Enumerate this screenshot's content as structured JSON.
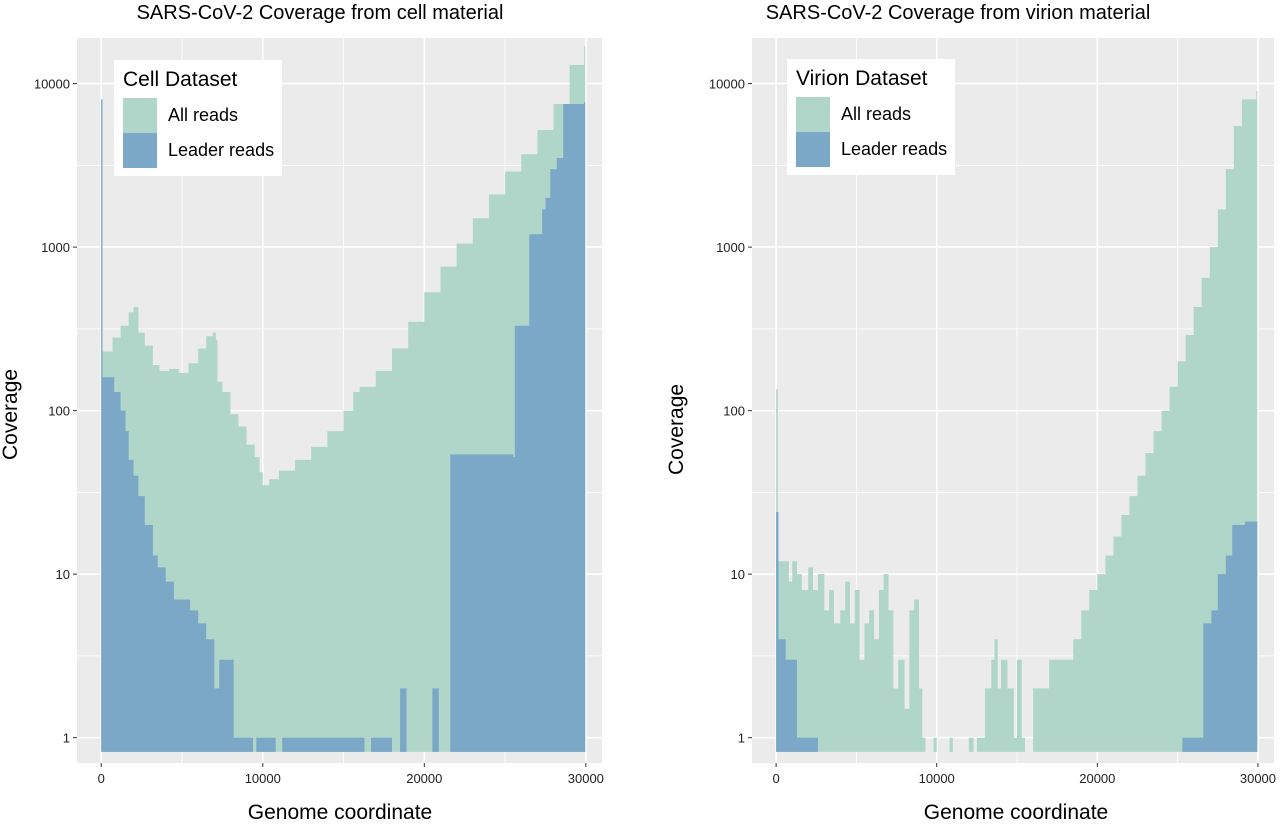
{
  "colors": {
    "panel_bg": "#ebebeb",
    "grid": "#ffffff",
    "all_reads": "#b0d6ca",
    "leader_reads": "#7ba8c7"
  },
  "chart_data": [
    {
      "type": "area",
      "title": "SARS-CoV-2 Coverage from cell material",
      "xlabel": "Genome coordinate",
      "ylabel": "Coverage",
      "y_scale": "log10",
      "xlim": [
        -1500,
        31000
      ],
      "ylim": [
        0.7,
        19000
      ],
      "x_ticks": [
        0,
        10000,
        20000,
        30000
      ],
      "y_ticks": [
        1,
        10,
        100,
        1000,
        10000
      ],
      "x_tick_labels": [
        "0",
        "10000",
        "20000",
        "30000"
      ],
      "y_tick_labels": [
        "1",
        "10",
        "100",
        "1000",
        "10000"
      ],
      "grid": true,
      "legend": {
        "title": "Cell Dataset",
        "position": "top-left",
        "entries": [
          "All reads",
          "Leader reads"
        ]
      },
      "series": [
        {
          "name": "All reads",
          "color_key": "all_reads",
          "points": [
            [
              0,
              8000
            ],
            [
              60,
              8000
            ],
            [
              80,
              230
            ],
            [
              300,
              230
            ],
            [
              700,
              280
            ],
            [
              1200,
              330
            ],
            [
              1700,
              400
            ],
            [
              2000,
              430
            ],
            [
              2300,
              300
            ],
            [
              2700,
              250
            ],
            [
              3200,
              190
            ],
            [
              3600,
              175
            ],
            [
              4200,
              180
            ],
            [
              4800,
              170
            ],
            [
              5400,
              195
            ],
            [
              6000,
              240
            ],
            [
              6500,
              285
            ],
            [
              6900,
              300
            ],
            [
              7100,
              270
            ],
            [
              7200,
              150
            ],
            [
              7500,
              130
            ],
            [
              8000,
              95
            ],
            [
              8500,
              80
            ],
            [
              9000,
              62
            ],
            [
              9500,
              52
            ],
            [
              9800,
              42
            ],
            [
              10000,
              35
            ],
            [
              10400,
              38
            ],
            [
              11000,
              43
            ],
            [
              12000,
              50
            ],
            [
              13000,
              60
            ],
            [
              14000,
              75
            ],
            [
              15000,
              100
            ],
            [
              15600,
              130
            ],
            [
              16000,
              140
            ],
            [
              17000,
              175
            ],
            [
              18000,
              240
            ],
            [
              19000,
              350
            ],
            [
              20000,
              530
            ],
            [
              21000,
              760
            ],
            [
              22000,
              1050
            ],
            [
              23000,
              1500
            ],
            [
              24000,
              2100
            ],
            [
              25000,
              2900
            ],
            [
              26000,
              3700
            ],
            [
              27000,
              5200
            ],
            [
              28000,
              7500
            ],
            [
              29000,
              13000
            ],
            [
              29900,
              17000
            ]
          ]
        },
        {
          "name": "Leader reads",
          "color_key": "leader_reads",
          "points": [
            [
              0,
              8000
            ],
            [
              60,
              8000
            ],
            [
              80,
              160
            ],
            [
              800,
              130
            ],
            [
              1200,
              100
            ],
            [
              1500,
              75
            ],
            [
              1700,
              50
            ],
            [
              2000,
              40
            ],
            [
              2300,
              30
            ],
            [
              2700,
              20
            ],
            [
              3200,
              13
            ],
            [
              3500,
              11
            ],
            [
              4000,
              9
            ],
            [
              4500,
              7
            ],
            [
              5000,
              7
            ],
            [
              5500,
              6
            ],
            [
              6000,
              5
            ],
            [
              6500,
              4
            ],
            [
              7000,
              2
            ],
            [
              7300,
              3
            ],
            [
              8200,
              1
            ],
            [
              9000,
              1
            ],
            [
              9400,
              0.8
            ],
            [
              9600,
              1
            ],
            [
              10800,
              0.8
            ],
            [
              11200,
              1
            ],
            [
              16300,
              0.8
            ],
            [
              16700,
              1
            ],
            [
              18000,
              0.8
            ],
            [
              18500,
              2
            ],
            [
              18900,
              0.8
            ],
            [
              20500,
              2
            ],
            [
              20900,
              0.8
            ],
            [
              21600,
              54
            ],
            [
              25500,
              52
            ],
            [
              25600,
              330
            ],
            [
              26200,
              330
            ],
            [
              26500,
              1200
            ],
            [
              27300,
              1700
            ],
            [
              27500,
              2000
            ],
            [
              27800,
              3000
            ],
            [
              28200,
              3500
            ],
            [
              28600,
              7500
            ],
            [
              29900,
              7700
            ]
          ]
        }
      ]
    },
    {
      "type": "area",
      "title": "SARS-CoV-2 Coverage from virion material",
      "xlabel": "Genome coordinate",
      "ylabel": "Coverage",
      "y_scale": "log10",
      "xlim": [
        -1500,
        31000
      ],
      "ylim": [
        0.7,
        19000
      ],
      "x_ticks": [
        0,
        10000,
        20000,
        30000
      ],
      "y_ticks": [
        1,
        10,
        100,
        1000,
        10000
      ],
      "x_tick_labels": [
        "0",
        "10000",
        "20000",
        "30000"
      ],
      "y_tick_labels": [
        "1",
        "10",
        "100",
        "1000",
        "10000"
      ],
      "grid": true,
      "legend": {
        "title": "Virion Dataset",
        "position": "top-left",
        "entries": [
          "All reads",
          "Leader reads"
        ]
      },
      "series": [
        {
          "name": "All reads",
          "color_key": "all_reads",
          "points": [
            [
              0,
              135
            ],
            [
              100,
              12
            ],
            [
              600,
              12
            ],
            [
              800,
              9
            ],
            [
              1000,
              12
            ],
            [
              1300,
              10
            ],
            [
              1600,
              8
            ],
            [
              2000,
              11
            ],
            [
              2300,
              8
            ],
            [
              2600,
              10
            ],
            [
              3000,
              6
            ],
            [
              3300,
              8
            ],
            [
              3600,
              5
            ],
            [
              4000,
              6
            ],
            [
              4300,
              9
            ],
            [
              4600,
              5
            ],
            [
              4900,
              8
            ],
            [
              5200,
              3
            ],
            [
              5500,
              5
            ],
            [
              5800,
              6
            ],
            [
              6100,
              4
            ],
            [
              6400,
              8
            ],
            [
              6700,
              10
            ],
            [
              7000,
              6
            ],
            [
              7300,
              2
            ],
            [
              7600,
              3
            ],
            [
              8000,
              1.5
            ],
            [
              8300,
              6
            ],
            [
              8600,
              7
            ],
            [
              8900,
              2
            ],
            [
              9100,
              1
            ],
            [
              9300,
              0.8
            ],
            [
              9800,
              1
            ],
            [
              10000,
              0.8
            ],
            [
              10800,
              1
            ],
            [
              11000,
              0.8
            ],
            [
              12000,
              1
            ],
            [
              12300,
              0.8
            ],
            [
              12500,
              1
            ],
            [
              13000,
              2
            ],
            [
              13400,
              3
            ],
            [
              13600,
              4
            ],
            [
              13800,
              2
            ],
            [
              14000,
              3
            ],
            [
              14400,
              2
            ],
            [
              14800,
              1
            ],
            [
              15000,
              3
            ],
            [
              15300,
              1
            ],
            [
              15500,
              0.8
            ],
            [
              16000,
              2
            ],
            [
              16500,
              2
            ],
            [
              17000,
              3
            ],
            [
              18000,
              3
            ],
            [
              18500,
              4
            ],
            [
              19000,
              6
            ],
            [
              19500,
              8
            ],
            [
              20000,
              10
            ],
            [
              20500,
              13
            ],
            [
              21000,
              17
            ],
            [
              21500,
              23
            ],
            [
              22000,
              30
            ],
            [
              22500,
              40
            ],
            [
              23000,
              55
            ],
            [
              23500,
              75
            ],
            [
              24000,
              100
            ],
            [
              24500,
              140
            ],
            [
              25000,
              200
            ],
            [
              25500,
              290
            ],
            [
              26000,
              430
            ],
            [
              26500,
              650
            ],
            [
              27000,
              1000
            ],
            [
              27500,
              1700
            ],
            [
              28000,
              3000
            ],
            [
              28500,
              5500
            ],
            [
              29000,
              8000
            ],
            [
              29900,
              9000
            ]
          ]
        },
        {
          "name": "Leader reads",
          "color_key": "leader_reads",
          "points": [
            [
              0,
              24
            ],
            [
              150,
              4
            ],
            [
              500,
              4
            ],
            [
              600,
              3
            ],
            [
              1100,
              3
            ],
            [
              1300,
              1
            ],
            [
              2500,
              1
            ],
            [
              2600,
              0.8
            ],
            [
              25100,
              0.8
            ],
            [
              25300,
              1
            ],
            [
              26500,
              1
            ],
            [
              26600,
              5
            ],
            [
              27100,
              6
            ],
            [
              27500,
              10
            ],
            [
              28000,
              13
            ],
            [
              28400,
              20
            ],
            [
              29200,
              21
            ],
            [
              29900,
              21
            ]
          ]
        }
      ]
    }
  ]
}
